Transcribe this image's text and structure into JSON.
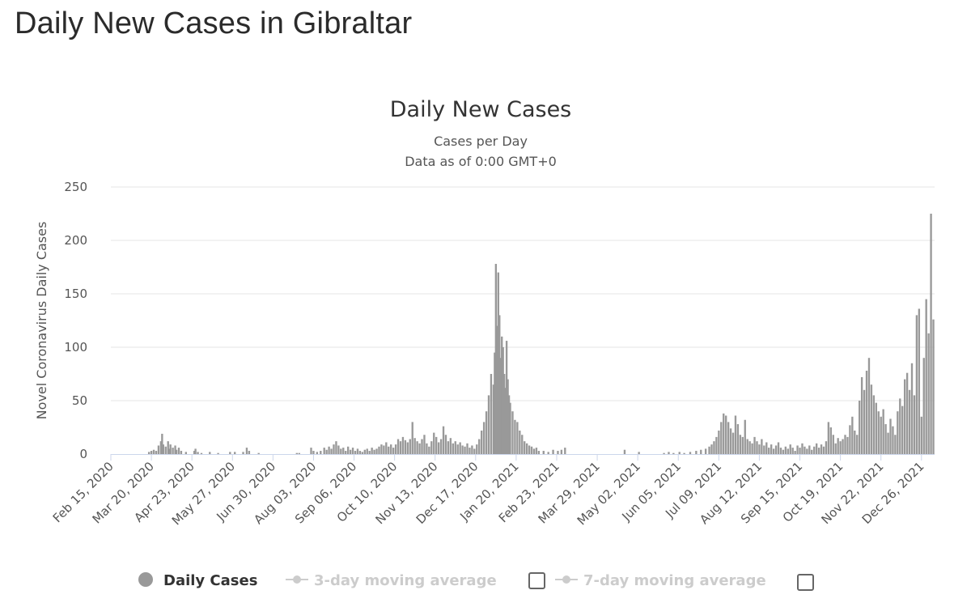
{
  "page": {
    "title": "Daily New Cases in Gibraltar"
  },
  "chart_data": {
    "type": "bar",
    "title": "Daily New Cases",
    "subtitle": "Cases per Day",
    "subtitle2": "Data as of 0:00 GMT+0",
    "ylabel": "Novel Coronavirus Daily Cases",
    "xlabel": "",
    "ylim": [
      0,
      250
    ],
    "yticks": [
      0,
      50,
      100,
      150,
      200,
      250
    ],
    "x_start": "2020-02-15",
    "x_end": "2022-01-06",
    "xticks": [
      "Feb 15, 2020",
      "Mar 20, 2020",
      "Apr 23, 2020",
      "May 27, 2020",
      "Jun 30, 2020",
      "Aug 03, 2020",
      "Sep 06, 2020",
      "Oct 10, 2020",
      "Nov 13, 2020",
      "Dec 17, 2020",
      "Jan 20, 2021",
      "Feb 23, 2021",
      "Mar 29, 2021",
      "May 02, 2021",
      "Jun 05, 2021",
      "Jul 09, 2021",
      "Aug 12, 2021",
      "Sep 15, 2021",
      "Oct 19, 2021",
      "Nov 22, 2021",
      "Dec 26, 2021"
    ],
    "grid": true,
    "bar_color": "#999999",
    "legend_position": "bottom-center",
    "series": [
      {
        "name": "Daily Cases",
        "points": [
          [
            "2020-03-18",
            2
          ],
          [
            "2020-03-20",
            3
          ],
          [
            "2020-03-22",
            4
          ],
          [
            "2020-03-24",
            3
          ],
          [
            "2020-03-26",
            8
          ],
          [
            "2020-03-28",
            12
          ],
          [
            "2020-03-29",
            19
          ],
          [
            "2020-03-30",
            9
          ],
          [
            "2020-04-01",
            7
          ],
          [
            "2020-04-03",
            12
          ],
          [
            "2020-04-04",
            5
          ],
          [
            "2020-04-05",
            9
          ],
          [
            "2020-04-07",
            6
          ],
          [
            "2020-04-09",
            8
          ],
          [
            "2020-04-10",
            4
          ],
          [
            "2020-04-12",
            6
          ],
          [
            "2020-04-14",
            3
          ],
          [
            "2020-04-18",
            2
          ],
          [
            "2020-04-25",
            3
          ],
          [
            "2020-04-26",
            5
          ],
          [
            "2020-04-28",
            2
          ],
          [
            "2020-05-01",
            1
          ],
          [
            "2020-05-08",
            2
          ],
          [
            "2020-05-15",
            1
          ],
          [
            "2020-05-25",
            2
          ],
          [
            "2020-05-29",
            2
          ],
          [
            "2020-06-05",
            2
          ],
          [
            "2020-06-08",
            6
          ],
          [
            "2020-06-10",
            3
          ],
          [
            "2020-06-18",
            1
          ],
          [
            "2020-07-20",
            1
          ],
          [
            "2020-07-22",
            1
          ],
          [
            "2020-08-01",
            6
          ],
          [
            "2020-08-03",
            3
          ],
          [
            "2020-08-06",
            2
          ],
          [
            "2020-08-09",
            3
          ],
          [
            "2020-08-12",
            6
          ],
          [
            "2020-08-14",
            4
          ],
          [
            "2020-08-16",
            7
          ],
          [
            "2020-08-18",
            5
          ],
          [
            "2020-08-20",
            9
          ],
          [
            "2020-08-22",
            12
          ],
          [
            "2020-08-24",
            8
          ],
          [
            "2020-08-26",
            5
          ],
          [
            "2020-08-28",
            6
          ],
          [
            "2020-08-30",
            3
          ],
          [
            "2020-09-01",
            7
          ],
          [
            "2020-09-03",
            4
          ],
          [
            "2020-09-05",
            6
          ],
          [
            "2020-09-07",
            3
          ],
          [
            "2020-09-09",
            5
          ],
          [
            "2020-09-11",
            3
          ],
          [
            "2020-09-13",
            2
          ],
          [
            "2020-09-15",
            4
          ],
          [
            "2020-09-17",
            5
          ],
          [
            "2020-09-19",
            3
          ],
          [
            "2020-09-21",
            6
          ],
          [
            "2020-09-23",
            4
          ],
          [
            "2020-09-25",
            5
          ],
          [
            "2020-09-27",
            7
          ],
          [
            "2020-09-29",
            9
          ],
          [
            "2020-10-01",
            8
          ],
          [
            "2020-10-03",
            11
          ],
          [
            "2020-10-05",
            7
          ],
          [
            "2020-10-07",
            9
          ],
          [
            "2020-10-09",
            6
          ],
          [
            "2020-10-11",
            9
          ],
          [
            "2020-10-13",
            14
          ],
          [
            "2020-10-15",
            12
          ],
          [
            "2020-10-17",
            16
          ],
          [
            "2020-10-19",
            13
          ],
          [
            "2020-10-21",
            11
          ],
          [
            "2020-10-23",
            14
          ],
          [
            "2020-10-25",
            30
          ],
          [
            "2020-10-27",
            15
          ],
          [
            "2020-10-29",
            12
          ],
          [
            "2020-10-31",
            10
          ],
          [
            "2020-11-02",
            14
          ],
          [
            "2020-11-04",
            18
          ],
          [
            "2020-11-06",
            10
          ],
          [
            "2020-11-08",
            7
          ],
          [
            "2020-11-10",
            12
          ],
          [
            "2020-11-12",
            20
          ],
          [
            "2020-11-14",
            16
          ],
          [
            "2020-11-16",
            11
          ],
          [
            "2020-11-18",
            14
          ],
          [
            "2020-11-20",
            26
          ],
          [
            "2020-11-22",
            18
          ],
          [
            "2020-11-24",
            12
          ],
          [
            "2020-11-26",
            15
          ],
          [
            "2020-11-28",
            10
          ],
          [
            "2020-11-30",
            12
          ],
          [
            "2020-12-02",
            9
          ],
          [
            "2020-12-04",
            11
          ],
          [
            "2020-12-06",
            8
          ],
          [
            "2020-12-08",
            7
          ],
          [
            "2020-12-10",
            10
          ],
          [
            "2020-12-12",
            6
          ],
          [
            "2020-12-14",
            8
          ],
          [
            "2020-12-16",
            5
          ],
          [
            "2020-12-18",
            9
          ],
          [
            "2020-12-20",
            14
          ],
          [
            "2020-12-22",
            22
          ],
          [
            "2020-12-24",
            30
          ],
          [
            "2020-12-26",
            40
          ],
          [
            "2020-12-28",
            55
          ],
          [
            "2020-12-30",
            75
          ],
          [
            "2021-01-01",
            65
          ],
          [
            "2021-01-02",
            95
          ],
          [
            "2021-01-03",
            178
          ],
          [
            "2021-01-04",
            120
          ],
          [
            "2021-01-05",
            170
          ],
          [
            "2021-01-06",
            130
          ],
          [
            "2021-01-07",
            90
          ],
          [
            "2021-01-08",
            110
          ],
          [
            "2021-01-09",
            100
          ],
          [
            "2021-01-10",
            75
          ],
          [
            "2021-01-11",
            62
          ],
          [
            "2021-01-12",
            106
          ],
          [
            "2021-01-13",
            70
          ],
          [
            "2021-01-14",
            55
          ],
          [
            "2021-01-15",
            48
          ],
          [
            "2021-01-17",
            40
          ],
          [
            "2021-01-19",
            32
          ],
          [
            "2021-01-21",
            30
          ],
          [
            "2021-01-23",
            22
          ],
          [
            "2021-01-25",
            18
          ],
          [
            "2021-01-27",
            12
          ],
          [
            "2021-01-29",
            10
          ],
          [
            "2021-01-31",
            8
          ],
          [
            "2021-02-02",
            7
          ],
          [
            "2021-02-04",
            5
          ],
          [
            "2021-02-06",
            6
          ],
          [
            "2021-02-08",
            3
          ],
          [
            "2021-02-12",
            3
          ],
          [
            "2021-02-16",
            2
          ],
          [
            "2021-02-20",
            4
          ],
          [
            "2021-02-24",
            3
          ],
          [
            "2021-02-27",
            4
          ],
          [
            "2021-03-02",
            6
          ],
          [
            "2021-04-21",
            4
          ],
          [
            "2021-05-03",
            2
          ],
          [
            "2021-05-24",
            1
          ],
          [
            "2021-05-28",
            2
          ],
          [
            "2021-06-01",
            1
          ],
          [
            "2021-06-06",
            2
          ],
          [
            "2021-06-10",
            1
          ],
          [
            "2021-06-15",
            2
          ],
          [
            "2021-06-20",
            3
          ],
          [
            "2021-06-24",
            4
          ],
          [
            "2021-06-28",
            5
          ],
          [
            "2021-07-01",
            7
          ],
          [
            "2021-07-03",
            9
          ],
          [
            "2021-07-05",
            12
          ],
          [
            "2021-07-07",
            16
          ],
          [
            "2021-07-09",
            22
          ],
          [
            "2021-07-11",
            30
          ],
          [
            "2021-07-13",
            38
          ],
          [
            "2021-07-15",
            36
          ],
          [
            "2021-07-17",
            30
          ],
          [
            "2021-07-19",
            24
          ],
          [
            "2021-07-21",
            20
          ],
          [
            "2021-07-23",
            36
          ],
          [
            "2021-07-25",
            28
          ],
          [
            "2021-07-27",
            18
          ],
          [
            "2021-07-29",
            16
          ],
          [
            "2021-07-31",
            32
          ],
          [
            "2021-08-02",
            14
          ],
          [
            "2021-08-04",
            12
          ],
          [
            "2021-08-06",
            10
          ],
          [
            "2021-08-08",
            16
          ],
          [
            "2021-08-10",
            12
          ],
          [
            "2021-08-12",
            9
          ],
          [
            "2021-08-14",
            14
          ],
          [
            "2021-08-16",
            8
          ],
          [
            "2021-08-18",
            11
          ],
          [
            "2021-08-20",
            6
          ],
          [
            "2021-08-22",
            9
          ],
          [
            "2021-08-24",
            5
          ],
          [
            "2021-08-26",
            8
          ],
          [
            "2021-08-28",
            11
          ],
          [
            "2021-08-30",
            6
          ],
          [
            "2021-09-01",
            4
          ],
          [
            "2021-09-03",
            7
          ],
          [
            "2021-09-05",
            5
          ],
          [
            "2021-09-07",
            9
          ],
          [
            "2021-09-09",
            6
          ],
          [
            "2021-09-11",
            3
          ],
          [
            "2021-09-13",
            8
          ],
          [
            "2021-09-15",
            6
          ],
          [
            "2021-09-17",
            10
          ],
          [
            "2021-09-19",
            7
          ],
          [
            "2021-09-21",
            5
          ],
          [
            "2021-09-23",
            8
          ],
          [
            "2021-09-25",
            4
          ],
          [
            "2021-09-27",
            7
          ],
          [
            "2021-09-29",
            10
          ],
          [
            "2021-10-01",
            6
          ],
          [
            "2021-10-03",
            9
          ],
          [
            "2021-10-05",
            7
          ],
          [
            "2021-10-07",
            12
          ],
          [
            "2021-10-09",
            30
          ],
          [
            "2021-10-11",
            25
          ],
          [
            "2021-10-13",
            18
          ],
          [
            "2021-10-15",
            10
          ],
          [
            "2021-10-17",
            15
          ],
          [
            "2021-10-19",
            12
          ],
          [
            "2021-10-21",
            14
          ],
          [
            "2021-10-23",
            18
          ],
          [
            "2021-10-25",
            16
          ],
          [
            "2021-10-27",
            27
          ],
          [
            "2021-10-29",
            35
          ],
          [
            "2021-10-31",
            22
          ],
          [
            "2021-11-02",
            18
          ],
          [
            "2021-11-04",
            50
          ],
          [
            "2021-11-06",
            72
          ],
          [
            "2021-11-08",
            60
          ],
          [
            "2021-11-10",
            78
          ],
          [
            "2021-11-12",
            90
          ],
          [
            "2021-11-14",
            65
          ],
          [
            "2021-11-16",
            55
          ],
          [
            "2021-11-18",
            48
          ],
          [
            "2021-11-20",
            40
          ],
          [
            "2021-11-22",
            35
          ],
          [
            "2021-11-24",
            42
          ],
          [
            "2021-11-26",
            28
          ],
          [
            "2021-11-28",
            20
          ],
          [
            "2021-11-30",
            33
          ],
          [
            "2021-12-02",
            26
          ],
          [
            "2021-12-04",
            18
          ],
          [
            "2021-12-06",
            40
          ],
          [
            "2021-12-08",
            52
          ],
          [
            "2021-12-10",
            45
          ],
          [
            "2021-12-12",
            70
          ],
          [
            "2021-12-14",
            76
          ],
          [
            "2021-12-16",
            60
          ],
          [
            "2021-12-18",
            85
          ],
          [
            "2021-12-20",
            55
          ],
          [
            "2021-12-22",
            130
          ],
          [
            "2021-12-24",
            136
          ],
          [
            "2021-12-26",
            35
          ],
          [
            "2021-12-28",
            90
          ],
          [
            "2021-12-30",
            145
          ],
          [
            "2022-01-01",
            113
          ],
          [
            "2022-01-03",
            225
          ],
          [
            "2022-01-05",
            126
          ]
        ]
      },
      {
        "name": "3-day moving average"
      },
      {
        "name": "7-day moving average"
      }
    ]
  },
  "legend": {
    "items": [
      {
        "label": "Daily Cases",
        "active": true,
        "symbol": "circle",
        "color": "#999999"
      },
      {
        "label": "3-day moving average",
        "active": false,
        "symbol": "line-dot",
        "color": "#cccccc"
      },
      {
        "label": "7-day moving average",
        "active": false,
        "symbol": "line-dot",
        "color": "#cccccc"
      }
    ],
    "checkbox_icons": [
      "checkbox-icon",
      "checkbox-icon"
    ]
  }
}
